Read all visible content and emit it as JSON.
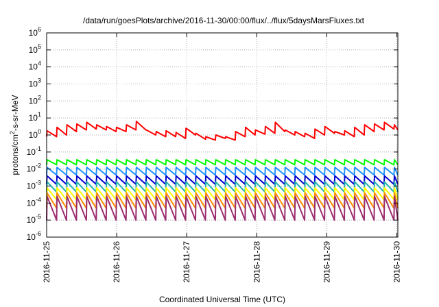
{
  "chart_data": {
    "type": "line",
    "title": "/data/run/goesPlots/archive/2016-11-30/00:00/flux/../flux/5daysMarsFluxes.txt",
    "xlabel": "Coordinated Universal Time (UTC)",
    "ylabel": {
      "base": "protons/cm",
      "sup": "2",
      "rest": "-s-sr-MeV"
    },
    "yscale": "log",
    "ylim": [
      -6,
      6
    ],
    "ytick_exponents": [
      -6,
      -5,
      -4,
      -3,
      -2,
      -1,
      0,
      1,
      2,
      3,
      4,
      5,
      6
    ],
    "xlim": [
      "2016-11-25 00:00",
      "2016-11-30 00:20"
    ],
    "xtick_labels": [
      "2016-11-25",
      "2016-11-26",
      "2016-11-27",
      "2016-11-28",
      "2016-11-29",
      "2016-11-30"
    ],
    "grid": true,
    "legend": "none",
    "series": [
      {
        "color": "#ff0000",
        "period_hours": 3.4,
        "peaks": [
          0.25,
          0.45,
          0.6,
          0.65,
          0.75,
          0.6,
          0.5,
          0.45,
          0.6,
          0.8,
          0.3,
          0.2,
          0.25,
          0.15,
          0.4,
          0.1,
          -0.1,
          0.0,
          -0.1,
          0.2,
          0.45,
          0.3,
          0.5,
          0.75,
          0.3,
          0.2,
          0.1,
          0.35,
          0.5,
          0.2
        ],
        "troughs": [
          -0.1,
          0.0,
          0.2,
          0.3,
          0.35,
          0.3,
          0.2,
          0.2,
          0.3,
          0.3,
          0.0,
          -0.1,
          -0.1,
          -0.2,
          0.0,
          -0.25,
          -0.3,
          -0.2,
          -0.3,
          -0.1,
          0.0,
          0.05,
          0.1,
          0.2,
          0.0,
          -0.1,
          -0.2,
          0.0,
          0.1,
          0.0
        ]
      },
      {
        "color": "#00ff00",
        "period_hours": 3.4,
        "peak": -1.45,
        "trough": -1.75
      },
      {
        "color": "#1e90ff",
        "period_hours": 3.4,
        "peak": -1.9,
        "trough": -2.35
      },
      {
        "color": "#0000cd",
        "period_hours": 3.4,
        "peak": -2.4,
        "trough": -2.9
      },
      {
        "color": "#20b2aa",
        "period_hours": 3.4,
        "peak": -2.75,
        "trough": -3.35
      },
      {
        "color": "#ffff00",
        "period_hours": 3.4,
        "peak": -3.1,
        "trough": -3.8
      },
      {
        "color": "#ff8c00",
        "period_hours": 3.4,
        "peak": -3.4,
        "trough": -4.3
      },
      {
        "color": "#9b2d6e",
        "period_hours": 3.4,
        "peak": -3.6,
        "trough": -5.0
      }
    ]
  }
}
